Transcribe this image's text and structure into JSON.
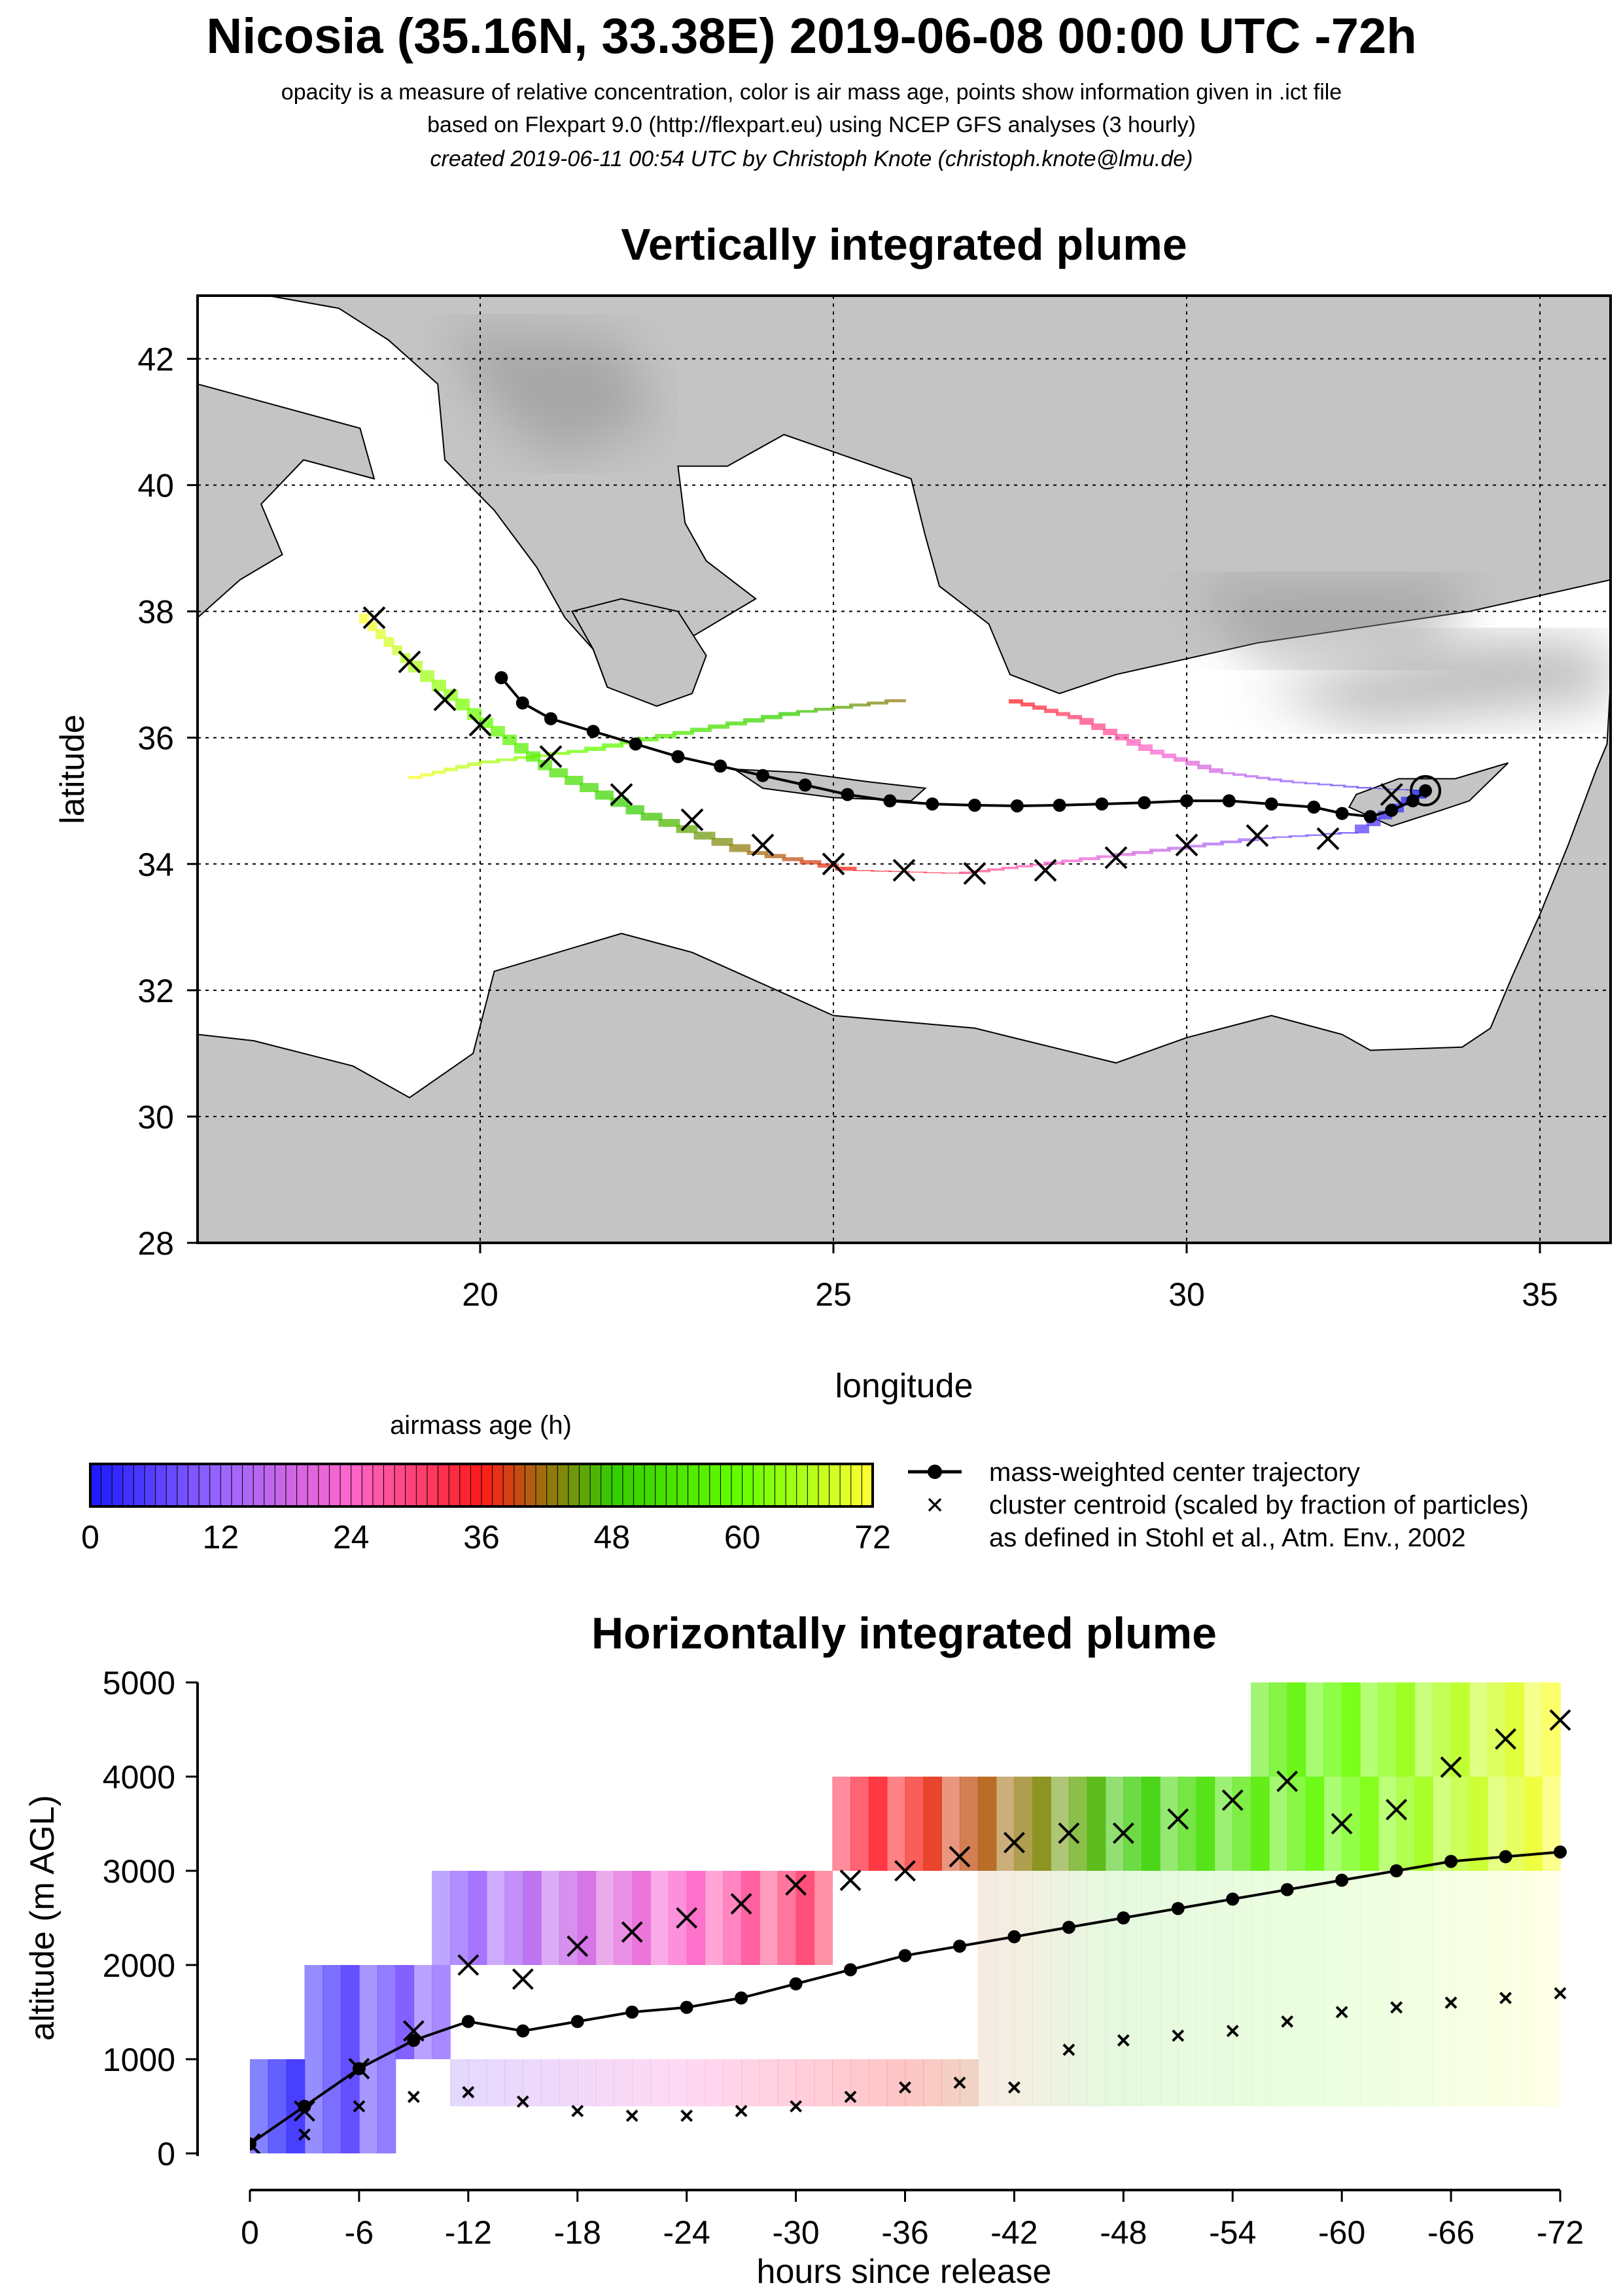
{
  "header": {
    "title": "Nicosia (35.16N, 33.38E) 2019-06-08 00:00 UTC -72h",
    "line1": "opacity is a measure of relative concentration, color is air mass age, points show information given in .ict file",
    "line2": "based on Flexpart 9.0 (http://flexpart.eu) using NCEP GFS analyses (3 hourly)",
    "line3": "created 2019-06-11 00:54 UTC by Christoph Knote (christoph.knote@lmu.de)"
  },
  "colors": {
    "land": "#c4c4c4",
    "land_dark": "#8e8e8e",
    "sea": "#ffffff",
    "age_0": "#1a1aff",
    "age_12": "#9966ff",
    "age_24": "#ff66cc",
    "age_36": "#ff1a1a",
    "age_48": "#33cc00",
    "age_60": "#66ff00",
    "age_72": "#ffff33"
  },
  "chart_data": [
    {
      "type": "scatter",
      "name": "map",
      "title": "Vertically integrated plume",
      "xlabel": "longitude",
      "ylabel": "latitude",
      "xlim": [
        16,
        36
      ],
      "ylim": [
        28,
        43
      ],
      "x_ticks": [
        20,
        25,
        30,
        35
      ],
      "y_ticks": [
        28,
        30,
        32,
        34,
        36,
        38,
        40,
        42
      ],
      "grid": true,
      "source": {
        "lon": 33.38,
        "lat": 35.16
      },
      "center_trajectory": {
        "lon": [
          33.38,
          33.2,
          32.9,
          32.6,
          32.2,
          31.8,
          31.2,
          30.6,
          30.0,
          29.4,
          28.8,
          28.2,
          27.6,
          27.0,
          26.4,
          25.8,
          25.2,
          24.6,
          24.0,
          23.4,
          22.8,
          22.2,
          21.6,
          21.0,
          20.6,
          20.3
        ],
        "lat": [
          35.16,
          35.0,
          34.85,
          34.75,
          34.8,
          34.9,
          34.95,
          35.0,
          35.0,
          34.97,
          34.95,
          34.93,
          34.92,
          34.93,
          34.95,
          35.0,
          35.1,
          35.25,
          35.4,
          35.55,
          35.7,
          35.9,
          36.1,
          36.3,
          36.55,
          36.95
        ]
      },
      "plumes": [
        {
          "age_h": [
            0,
            6,
            12,
            18,
            24,
            30,
            36,
            42,
            48,
            54,
            60,
            66,
            72
          ],
          "lon": [
            33.38,
            32.6,
            31.5,
            30.5,
            29.5,
            28.5,
            27.5,
            26.0,
            24.5,
            23.0,
            21.5,
            20.0,
            19.0
          ],
          "lat": [
            35.16,
            35.2,
            35.3,
            35.45,
            35.8,
            36.3,
            36.6,
            36.6,
            36.4,
            36.1,
            35.8,
            35.6,
            35.35
          ]
        },
        {
          "age_h": [
            0,
            6,
            12,
            18,
            24,
            30,
            36,
            42,
            48,
            54,
            60,
            66,
            72
          ],
          "lon": [
            33.38,
            32.4,
            31.0,
            29.5,
            28.0,
            26.8,
            25.3,
            23.8,
            22.3,
            21.0,
            20.0,
            19.0,
            18.3
          ],
          "lat": [
            35.16,
            34.5,
            34.4,
            34.2,
            34.0,
            33.85,
            33.9,
            34.2,
            34.8,
            35.5,
            36.3,
            37.2,
            37.95
          ]
        }
      ],
      "cluster_centroids": {
        "lon": [
          32.9,
          32.0,
          31.0,
          30.0,
          29.0,
          28.0,
          27.0,
          26.0,
          25.0,
          24.0,
          23.0,
          22.0,
          21.0,
          20.0,
          19.5,
          19.0,
          18.5
        ],
        "lat": [
          35.1,
          34.4,
          34.45,
          34.3,
          34.1,
          33.9,
          33.85,
          33.9,
          34.0,
          34.3,
          34.7,
          35.1,
          35.7,
          36.2,
          36.6,
          37.2,
          37.9
        ]
      }
    },
    {
      "type": "heatmap",
      "name": "colorbar",
      "title": "airmass age (h)",
      "range": [
        0,
        72
      ],
      "ticks": [
        0,
        12,
        24,
        36,
        48,
        60,
        72
      ],
      "legend": [
        "mass-weighted center trajectory",
        "cluster centroid (scaled by fraction of particles)",
        "as defined in Stohl et al., Atm. Env., 2002"
      ]
    },
    {
      "type": "scatter",
      "name": "vertical",
      "title": "Horizontally integrated plume",
      "xlabel": "hours since release",
      "ylabel": "altitude (m AGL)",
      "xlim": [
        0,
        -72
      ],
      "ylim": [
        0,
        5000
      ],
      "x_ticks": [
        0,
        -6,
        -12,
        -18,
        -24,
        -30,
        -36,
        -42,
        -48,
        -54,
        -60,
        -66,
        -72
      ],
      "x_tick_labels": [
        "0",
        "-6",
        "-12",
        "-18",
        "-24",
        "-30",
        "-36",
        "-42",
        "-48",
        "-54",
        "-60",
        "-66",
        "-72"
      ],
      "y_ticks": [
        0,
        1000,
        2000,
        3000,
        4000,
        5000
      ],
      "center_trajectory": {
        "hours": [
          0,
          -3,
          -6,
          -9,
          -12,
          -15,
          -18,
          -21,
          -24,
          -27,
          -30,
          -33,
          -36,
          -39,
          -42,
          -45,
          -48,
          -51,
          -54,
          -57,
          -60,
          -63,
          -66,
          -69,
          -72
        ],
        "altitude": [
          100,
          500,
          900,
          1200,
          1400,
          1300,
          1400,
          1500,
          1550,
          1650,
          1800,
          1950,
          2100,
          2200,
          2300,
          2400,
          2500,
          2600,
          2700,
          2800,
          2900,
          3000,
          3100,
          3150,
          3200
        ]
      },
      "cluster_upper": {
        "hours": [
          0,
          -3,
          -6,
          -9,
          -12,
          -15,
          -18,
          -21,
          -24,
          -27,
          -30,
          -33,
          -36,
          -39,
          -42,
          -45,
          -48,
          -51,
          -54,
          -57,
          -60,
          -63,
          -66,
          -69,
          -72
        ],
        "altitude": [
          100,
          450,
          900,
          1300,
          2000,
          1850,
          2200,
          2350,
          2500,
          2650,
          2850,
          2900,
          3000,
          3150,
          3300,
          3400,
          3400,
          3550,
          3750,
          3950,
          3500,
          3650,
          4100,
          4400,
          4600
        ]
      },
      "cluster_lower": {
        "hours": [
          -3,
          -6,
          -9,
          -12,
          -15,
          -18,
          -21,
          -24,
          -27,
          -30,
          -33,
          -36,
          -39,
          -42,
          -45,
          -48,
          -51,
          -54,
          -57,
          -60,
          -63,
          -66,
          -69,
          -72
        ],
        "altitude": [
          200,
          500,
          600,
          650,
          550,
          450,
          400,
          400,
          450,
          500,
          600,
          700,
          750,
          700,
          1100,
          1200,
          1250,
          1300,
          1400,
          1500,
          1550,
          1600,
          1650,
          1700
        ]
      },
      "bands": [
        {
          "from": 0,
          "to": -8,
          "low": 0,
          "high": 1000
        },
        {
          "from": -3,
          "to": -11,
          "low": 1000,
          "high": 2000
        },
        {
          "from": -10,
          "to": -32,
          "low": 2000,
          "high": 3000
        },
        {
          "from": -11,
          "to": -40,
          "low": 500,
          "high": 1000
        },
        {
          "from": -32,
          "to": -72,
          "low": 3000,
          "high": 4000
        },
        {
          "from": -55,
          "to": -72,
          "low": 4000,
          "high": 5000
        },
        {
          "from": -40,
          "to": -72,
          "low": 500,
          "high": 3000
        }
      ]
    }
  ]
}
